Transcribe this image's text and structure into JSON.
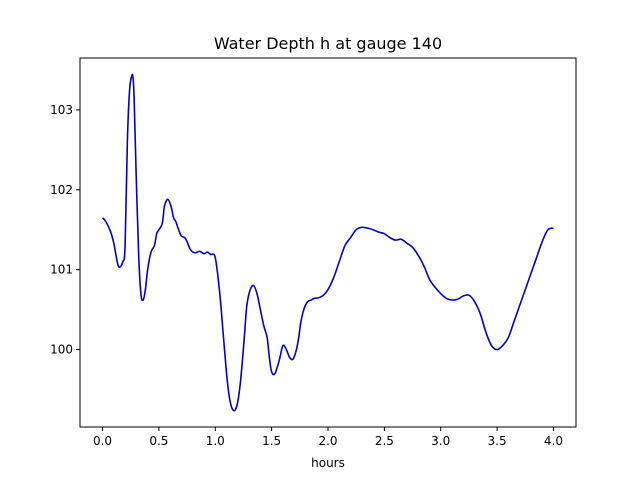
{
  "chart_data": {
    "type": "line",
    "title": "Water Depth h at gauge 140",
    "xlabel": "hours",
    "ylabel": "",
    "xlim": [
      -0.2,
      4.2
    ],
    "ylim": [
      99.03,
      103.65
    ],
    "xticks": [
      0.0,
      0.5,
      1.0,
      1.5,
      2.0,
      2.5,
      3.0,
      3.5,
      4.0
    ],
    "xtick_labels": [
      "0.0",
      "0.5",
      "1.0",
      "1.5",
      "2.0",
      "2.5",
      "3.0",
      "3.5",
      "4.0"
    ],
    "yticks": [
      100,
      101,
      102,
      103
    ],
    "ytick_labels": [
      "100",
      "101",
      "102",
      "103"
    ],
    "grid": false,
    "series": [
      {
        "color": "#0000cc",
        "x": [
          0.0,
          0.03,
          0.07,
          0.1,
          0.13,
          0.15,
          0.18,
          0.2,
          0.22,
          0.24,
          0.26,
          0.27,
          0.28,
          0.3,
          0.32,
          0.34,
          0.36,
          0.38,
          0.4,
          0.43,
          0.46,
          0.48,
          0.5,
          0.53,
          0.55,
          0.58,
          0.61,
          0.63,
          0.65,
          0.68,
          0.7,
          0.73,
          0.75,
          0.78,
          0.82,
          0.86,
          0.9,
          0.93,
          0.96,
          1.0,
          1.04,
          1.07,
          1.1,
          1.12,
          1.14,
          1.16,
          1.18,
          1.2,
          1.22,
          1.24,
          1.26,
          1.28,
          1.31,
          1.34,
          1.37,
          1.4,
          1.43,
          1.46,
          1.48,
          1.5,
          1.53,
          1.57,
          1.6,
          1.63,
          1.66,
          1.69,
          1.72,
          1.74,
          1.76,
          1.79,
          1.82,
          1.85,
          1.88,
          1.92,
          1.96,
          2.0,
          2.05,
          2.1,
          2.15,
          2.2,
          2.25,
          2.3,
          2.35,
          2.4,
          2.45,
          2.5,
          2.55,
          2.6,
          2.65,
          2.7,
          2.75,
          2.8,
          2.85,
          2.9,
          2.95,
          3.0,
          3.05,
          3.1,
          3.15,
          3.2,
          3.25,
          3.3,
          3.35,
          3.4,
          3.45,
          3.5,
          3.55,
          3.6,
          3.65,
          3.7,
          3.75,
          3.8,
          3.85,
          3.9,
          3.95,
          4.0
        ],
        "y": [
          101.65,
          101.6,
          101.48,
          101.33,
          101.1,
          101.03,
          101.1,
          101.3,
          102.6,
          103.25,
          103.43,
          103.4,
          103.15,
          102.1,
          101.2,
          100.7,
          100.62,
          100.75,
          101.0,
          101.22,
          101.3,
          101.45,
          101.5,
          101.58,
          101.8,
          101.88,
          101.78,
          101.65,
          101.6,
          101.48,
          101.42,
          101.4,
          101.35,
          101.25,
          101.21,
          101.23,
          101.2,
          101.22,
          101.19,
          101.15,
          100.7,
          100.2,
          99.7,
          99.45,
          99.3,
          99.24,
          99.25,
          99.35,
          99.55,
          99.85,
          100.2,
          100.55,
          100.75,
          100.8,
          100.7,
          100.5,
          100.3,
          100.15,
          99.9,
          99.72,
          99.7,
          99.88,
          100.05,
          100.0,
          99.9,
          99.88,
          100.0,
          100.15,
          100.35,
          100.52,
          100.6,
          100.62,
          100.64,
          100.65,
          100.68,
          100.75,
          100.9,
          101.1,
          101.3,
          101.4,
          101.5,
          101.53,
          101.52,
          101.5,
          101.47,
          101.45,
          101.4,
          101.37,
          101.38,
          101.33,
          101.28,
          101.18,
          101.05,
          100.88,
          100.78,
          100.7,
          100.64,
          100.62,
          100.63,
          100.67,
          100.68,
          100.6,
          100.45,
          100.22,
          100.05,
          100.0,
          100.05,
          100.15,
          100.35,
          100.55,
          100.75,
          100.95,
          101.15,
          101.35,
          101.5,
          101.52
        ]
      }
    ]
  }
}
